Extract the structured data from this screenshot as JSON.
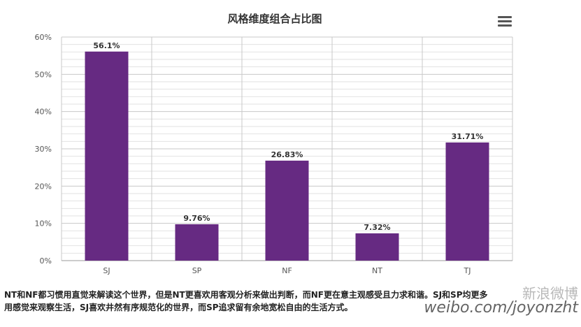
{
  "chart_data": {
    "type": "bar",
    "title": "风格维度组合占比图",
    "categories": [
      "SJ",
      "SP",
      "NF",
      "NT",
      "TJ"
    ],
    "values": [
      56.1,
      9.76,
      26.83,
      7.32,
      31.71
    ],
    "data_labels": [
      "56.1%",
      "9.76%",
      "26.83%",
      "7.32%",
      "31.71%"
    ],
    "ylim": [
      0,
      60
    ],
    "y_ticks": [
      "0%",
      "10%",
      "20%",
      "30%",
      "40%",
      "50%",
      "60%"
    ],
    "grid": true,
    "legend": "none",
    "bar_color": "#662a82"
  },
  "caption": {
    "line1": "NT和NF都习惯用直觉来解读这个世界，但是NT更喜欢用客观分析来做出判断，而NF更在意主观感受且力求和谐。SJ和SP均更多",
    "line2": "用感觉来观察生活，SJ喜欢井然有序规范化的世界，而SP追求留有余地宽松自由的生活方式。"
  },
  "watermark": {
    "top": "新浪微博",
    "bottom": "weibo.com/joyonzht"
  }
}
